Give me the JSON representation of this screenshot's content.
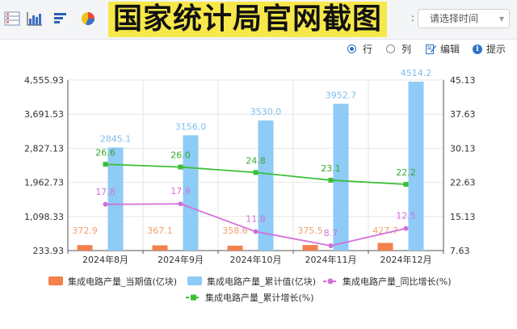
{
  "toolbar": {
    "icons": [
      "table-icon",
      "bar-chart-icon",
      "horizontal-bar-icon",
      "pie-chart-icon"
    ],
    "banner": "国家统计局官网截图",
    "time_select_placeholder": "请选择时间",
    "colon": ":"
  },
  "options": {
    "row_label": "行",
    "col_label": "列",
    "edit_label": "编辑",
    "hint_label": "提示",
    "selected": "row"
  },
  "colors": {
    "current_bar": "#f4804d",
    "cumulative_bar": "#8ecbf6",
    "yoy_line": "#d26fd9",
    "cum_growth_line": "#3cbf33",
    "grid": "#e6e6e6"
  },
  "chart_data": {
    "type": "bar",
    "categories": [
      "2024年8月",
      "2024年9月",
      "2024年10月",
      "2024年11月",
      "2024年12月"
    ],
    "series": [
      {
        "name": "集成电路产量_当期值(亿块)",
        "kind": "bar",
        "axis": "left",
        "values": [
          372.9,
          367.1,
          358.6,
          375.5,
          427.7
        ],
        "labels": [
          "372.9",
          "367.1",
          "358.6",
          "375.5",
          "427.7"
        ]
      },
      {
        "name": "集成电路产量_累计值(亿块)",
        "kind": "bar",
        "axis": "left",
        "values": [
          2845.1,
          3156.0,
          3530.0,
          3952.7,
          4514.2
        ],
        "labels": [
          "2845.1",
          "3156.0",
          "3530.0",
          "3952.7",
          "4514.2"
        ]
      },
      {
        "name": "集成电路产量_同比增长(%)",
        "kind": "line",
        "axis": "right",
        "values": [
          17.8,
          17.9,
          11.8,
          8.7,
          12.5
        ],
        "labels": [
          "17.8",
          "17.9",
          "11.8",
          "8.7",
          "12.5"
        ]
      },
      {
        "name": "集成电路产量_累计增长(%)",
        "kind": "line",
        "axis": "right",
        "values": [
          26.6,
          26.0,
          24.8,
          23.1,
          22.2
        ],
        "labels": [
          "26.6",
          "26.0",
          "24.8",
          "23.1",
          "22.2"
        ]
      }
    ],
    "left_axis": {
      "ticks": [
        "233.93",
        "1,098.33",
        "1,962.73",
        "2,827.13",
        "3,691.53",
        "4,555.93"
      ],
      "range": [
        233.93,
        4555.93
      ]
    },
    "right_axis": {
      "ticks": [
        "7.63",
        "15.13",
        "22.63",
        "30.13",
        "37.63",
        "45.13"
      ],
      "range": [
        7.63,
        45.13
      ]
    },
    "grid": true,
    "legend_position": "bottom"
  }
}
